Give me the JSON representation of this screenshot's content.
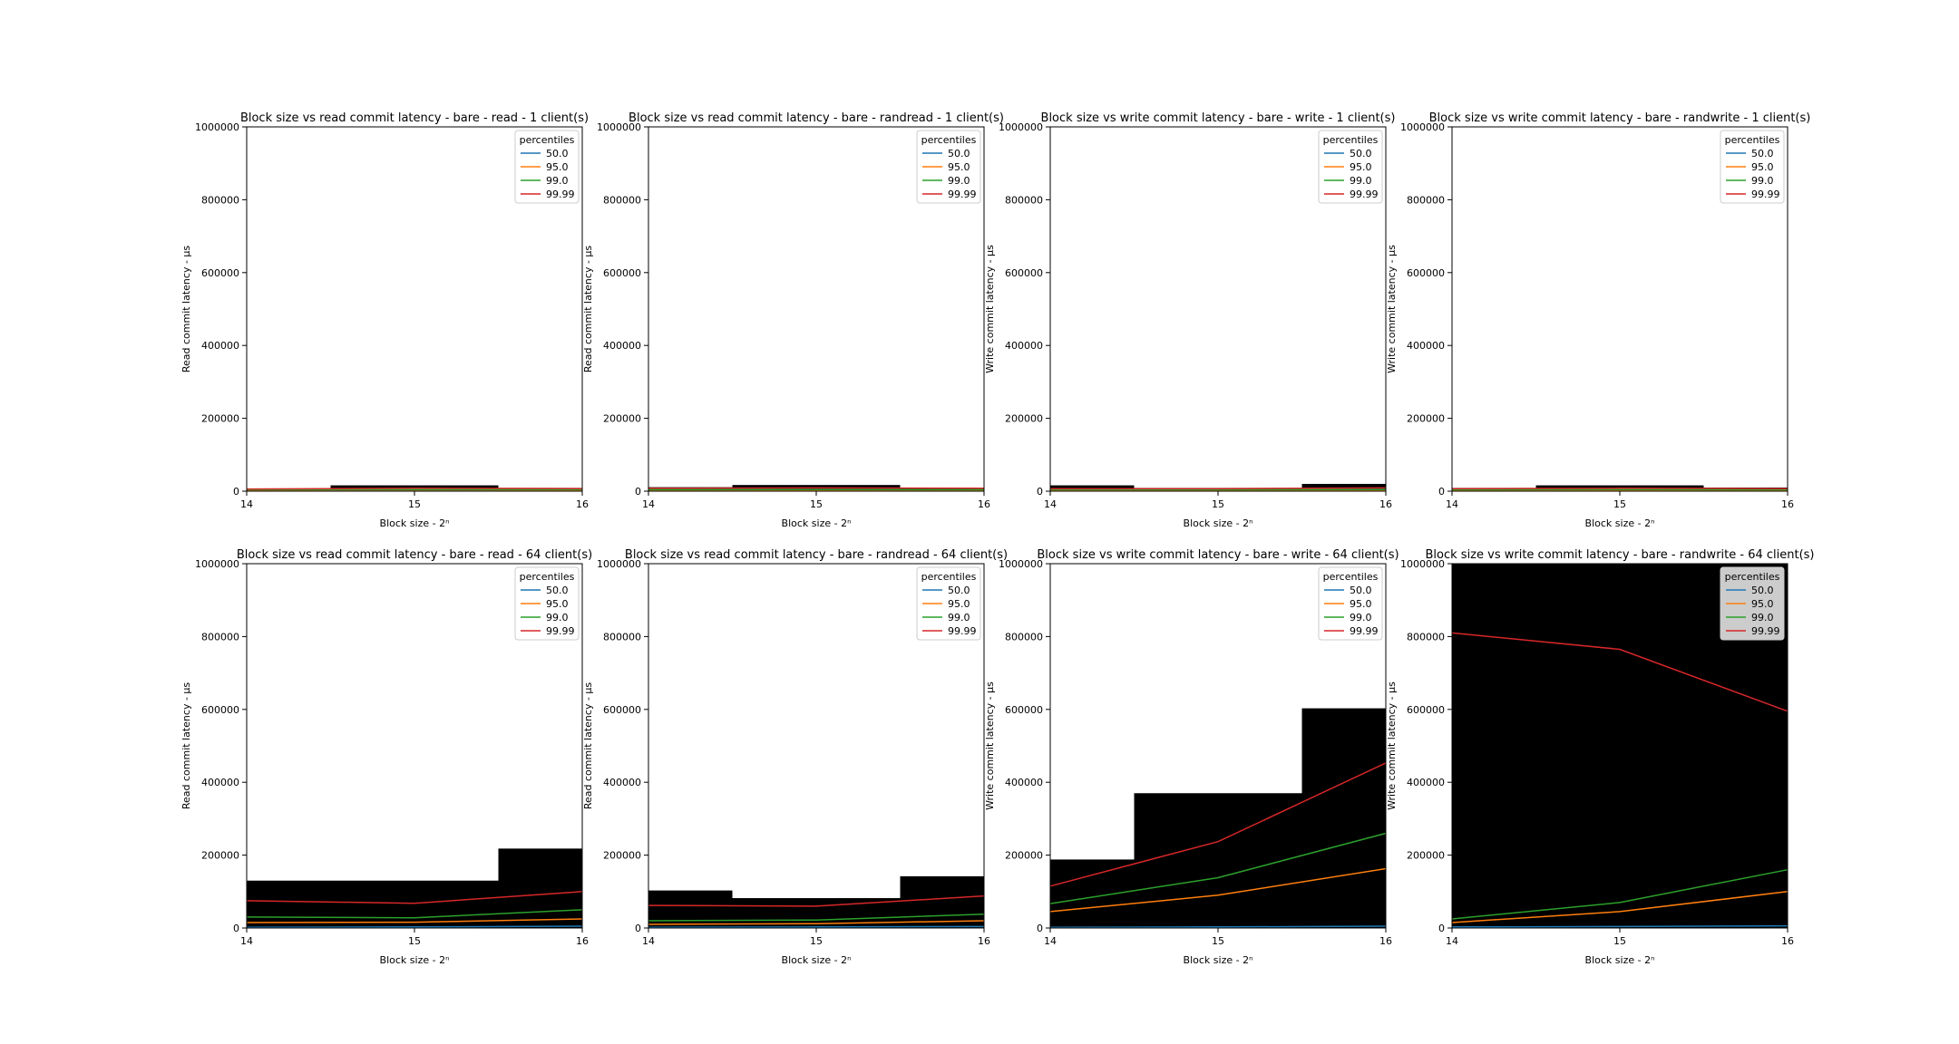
{
  "figure": {
    "charts_per_row": 4
  },
  "chart_data": [
    {
      "type": "line",
      "title": "Block size vs read commit latency - bare - read - 1 client(s)",
      "xlabel": "Block size - 2ⁿ",
      "ylabel": "Read commit latency - μs",
      "x": [
        14,
        15,
        16
      ],
      "xticks": [
        "14",
        "15",
        "16"
      ],
      "ylim": [
        0,
        1000000
      ],
      "yticks": [
        "0",
        "200000",
        "400000",
        "600000",
        "800000",
        "1000000"
      ],
      "legend": {
        "title": "percentiles",
        "position": "top-right"
      },
      "series": [
        {
          "name": "50.0",
          "values": [
            1000,
            1200,
            1300
          ]
        },
        {
          "name": "95.0",
          "values": [
            3000,
            3500,
            3300
          ]
        },
        {
          "name": "99.0",
          "values": [
            4000,
            4500,
            4200
          ]
        },
        {
          "name": "99.99",
          "values": [
            6000,
            8000,
            7000
          ]
        }
      ],
      "max_bars": [
        7000,
        16000,
        9000
      ]
    },
    {
      "type": "line",
      "title": "Block size vs read commit latency - bare - randread - 1 client(s)",
      "xlabel": "Block size - 2ⁿ",
      "ylabel": "Read commit latency - μs",
      "x": [
        14,
        15,
        16
      ],
      "xticks": [
        "14",
        "15",
        "16"
      ],
      "ylim": [
        0,
        1000000
      ],
      "yticks": [
        "0",
        "200000",
        "400000",
        "600000",
        "800000",
        "1000000"
      ],
      "legend": {
        "title": "percentiles",
        "position": "top-right"
      },
      "series": [
        {
          "name": "50.0",
          "values": [
            1000,
            1200,
            1300
          ]
        },
        {
          "name": "95.0",
          "values": [
            3000,
            3200,
            3100
          ]
        },
        {
          "name": "99.0",
          "values": [
            4000,
            4300,
            4100
          ]
        },
        {
          "name": "99.99",
          "values": [
            8000,
            9000,
            8000
          ]
        }
      ],
      "max_bars": [
        11000,
        17000,
        9000
      ]
    },
    {
      "type": "line",
      "title": "Block size vs write commit latency - bare - write - 1 client(s)",
      "xlabel": "Block size - 2ⁿ",
      "ylabel": "Write commit latency - μs",
      "x": [
        14,
        15,
        16
      ],
      "xticks": [
        "14",
        "15",
        "16"
      ],
      "ylim": [
        0,
        1000000
      ],
      "yticks": [
        "0",
        "200000",
        "400000",
        "600000",
        "800000",
        "1000000"
      ],
      "legend": {
        "title": "percentiles",
        "position": "top-right"
      },
      "series": [
        {
          "name": "50.0",
          "values": [
            1000,
            1200,
            1300
          ]
        },
        {
          "name": "95.0",
          "values": [
            3000,
            3000,
            3200
          ]
        },
        {
          "name": "99.0",
          "values": [
            4000,
            4000,
            4500
          ]
        },
        {
          "name": "99.99",
          "values": [
            7000,
            7000,
            9000
          ]
        }
      ],
      "max_bars": [
        16000,
        9000,
        20000
      ]
    },
    {
      "type": "line",
      "title": "Block size vs write commit latency - bare - randwrite - 1 client(s)",
      "xlabel": "Block size - 2ⁿ",
      "ylabel": "Write commit latency - μs",
      "x": [
        14,
        15,
        16
      ],
      "xticks": [
        "14",
        "15",
        "16"
      ],
      "ylim": [
        0,
        1000000
      ],
      "yticks": [
        "0",
        "200000",
        "400000",
        "600000",
        "800000",
        "1000000"
      ],
      "legend": {
        "title": "percentiles",
        "position": "top-right"
      },
      "series": [
        {
          "name": "50.0",
          "values": [
            1000,
            1200,
            1300
          ]
        },
        {
          "name": "95.0",
          "values": [
            3000,
            3200,
            3100
          ]
        },
        {
          "name": "99.0",
          "values": [
            4000,
            4200,
            4100
          ]
        },
        {
          "name": "99.99",
          "values": [
            7000,
            8000,
            7000
          ]
        }
      ],
      "max_bars": [
        9000,
        16000,
        10000
      ]
    },
    {
      "type": "line",
      "title": "Block size vs read commit latency - bare - read - 64 client(s)",
      "xlabel": "Block size - 2ⁿ",
      "ylabel": "Read commit latency - μs",
      "x": [
        14,
        15,
        16
      ],
      "xticks": [
        "14",
        "15",
        "16"
      ],
      "ylim": [
        0,
        1000000
      ],
      "yticks": [
        "0",
        "200000",
        "400000",
        "600000",
        "800000",
        "1000000"
      ],
      "legend": {
        "title": "percentiles",
        "position": "top-right"
      },
      "series": [
        {
          "name": "50.0",
          "values": [
            2000,
            3000,
            5000
          ]
        },
        {
          "name": "95.0",
          "values": [
            15000,
            16000,
            25000
          ]
        },
        {
          "name": "99.0",
          "values": [
            30000,
            28000,
            50000
          ]
        },
        {
          "name": "99.99",
          "values": [
            75000,
            68000,
            100000
          ]
        }
      ],
      "max_bars": [
        130000,
        130000,
        218000
      ]
    },
    {
      "type": "line",
      "title": "Block size vs read commit latency - bare - randread - 64 client(s)",
      "xlabel": "Block size - 2ⁿ",
      "ylabel": "Read commit latency - μs",
      "x": [
        14,
        15,
        16
      ],
      "xticks": [
        "14",
        "15",
        "16"
      ],
      "ylim": [
        0,
        1000000
      ],
      "yticks": [
        "0",
        "200000",
        "400000",
        "600000",
        "800000",
        "1000000"
      ],
      "legend": {
        "title": "percentiles",
        "position": "top-right"
      },
      "series": [
        {
          "name": "50.0",
          "values": [
            2000,
            3000,
            4000
          ]
        },
        {
          "name": "95.0",
          "values": [
            10000,
            12000,
            20000
          ]
        },
        {
          "name": "99.0",
          "values": [
            20000,
            22000,
            38000
          ]
        },
        {
          "name": "99.99",
          "values": [
            62000,
            60000,
            88000
          ]
        }
      ],
      "max_bars": [
        103000,
        82000,
        142000
      ]
    },
    {
      "type": "line",
      "title": "Block size vs write commit latency - bare - write - 64 client(s)",
      "xlabel": "Block size - 2ⁿ",
      "ylabel": "Write commit latency - μs",
      "x": [
        14,
        15,
        16
      ],
      "xticks": [
        "14",
        "15",
        "16"
      ],
      "ylim": [
        0,
        1000000
      ],
      "yticks": [
        "0",
        "200000",
        "400000",
        "600000",
        "800000",
        "1000000"
      ],
      "legend": {
        "title": "percentiles",
        "position": "top-right"
      },
      "series": [
        {
          "name": "50.0",
          "values": [
            2000,
            3000,
            5000
          ]
        },
        {
          "name": "95.0",
          "values": [
            45000,
            90000,
            163000
          ]
        },
        {
          "name": "99.0",
          "values": [
            67000,
            138000,
            260000
          ]
        },
        {
          "name": "99.99",
          "values": [
            115000,
            237000,
            453000
          ]
        }
      ],
      "max_bars": [
        188000,
        370000,
        603000
      ]
    },
    {
      "type": "line",
      "title": "Block size vs write commit latency - bare - randwrite - 64 client(s)",
      "xlabel": "Block size - 2ⁿ",
      "ylabel": "Write commit latency - μs",
      "x": [
        14,
        15,
        16
      ],
      "xticks": [
        "14",
        "15",
        "16"
      ],
      "ylim": [
        0,
        1000000
      ],
      "yticks": [
        "0",
        "200000",
        "400000",
        "600000",
        "800000",
        "1000000"
      ],
      "legend": {
        "title": "percentiles",
        "position": "top-right"
      },
      "series": [
        {
          "name": "50.0",
          "values": [
            3000,
            4000,
            6000
          ]
        },
        {
          "name": "95.0",
          "values": [
            15000,
            45000,
            100000
          ]
        },
        {
          "name": "99.0",
          "values": [
            25000,
            70000,
            160000
          ]
        },
        {
          "name": "99.99",
          "values": [
            810000,
            765000,
            595000
          ]
        }
      ],
      "max_bars": [
        1000000,
        1000000,
        1000000
      ]
    }
  ],
  "colors": {
    "series": [
      "#1f77b4",
      "#ff7f0e",
      "#2ca02c",
      "#d62728"
    ],
    "bars": "#000000",
    "axes": "#000000"
  }
}
